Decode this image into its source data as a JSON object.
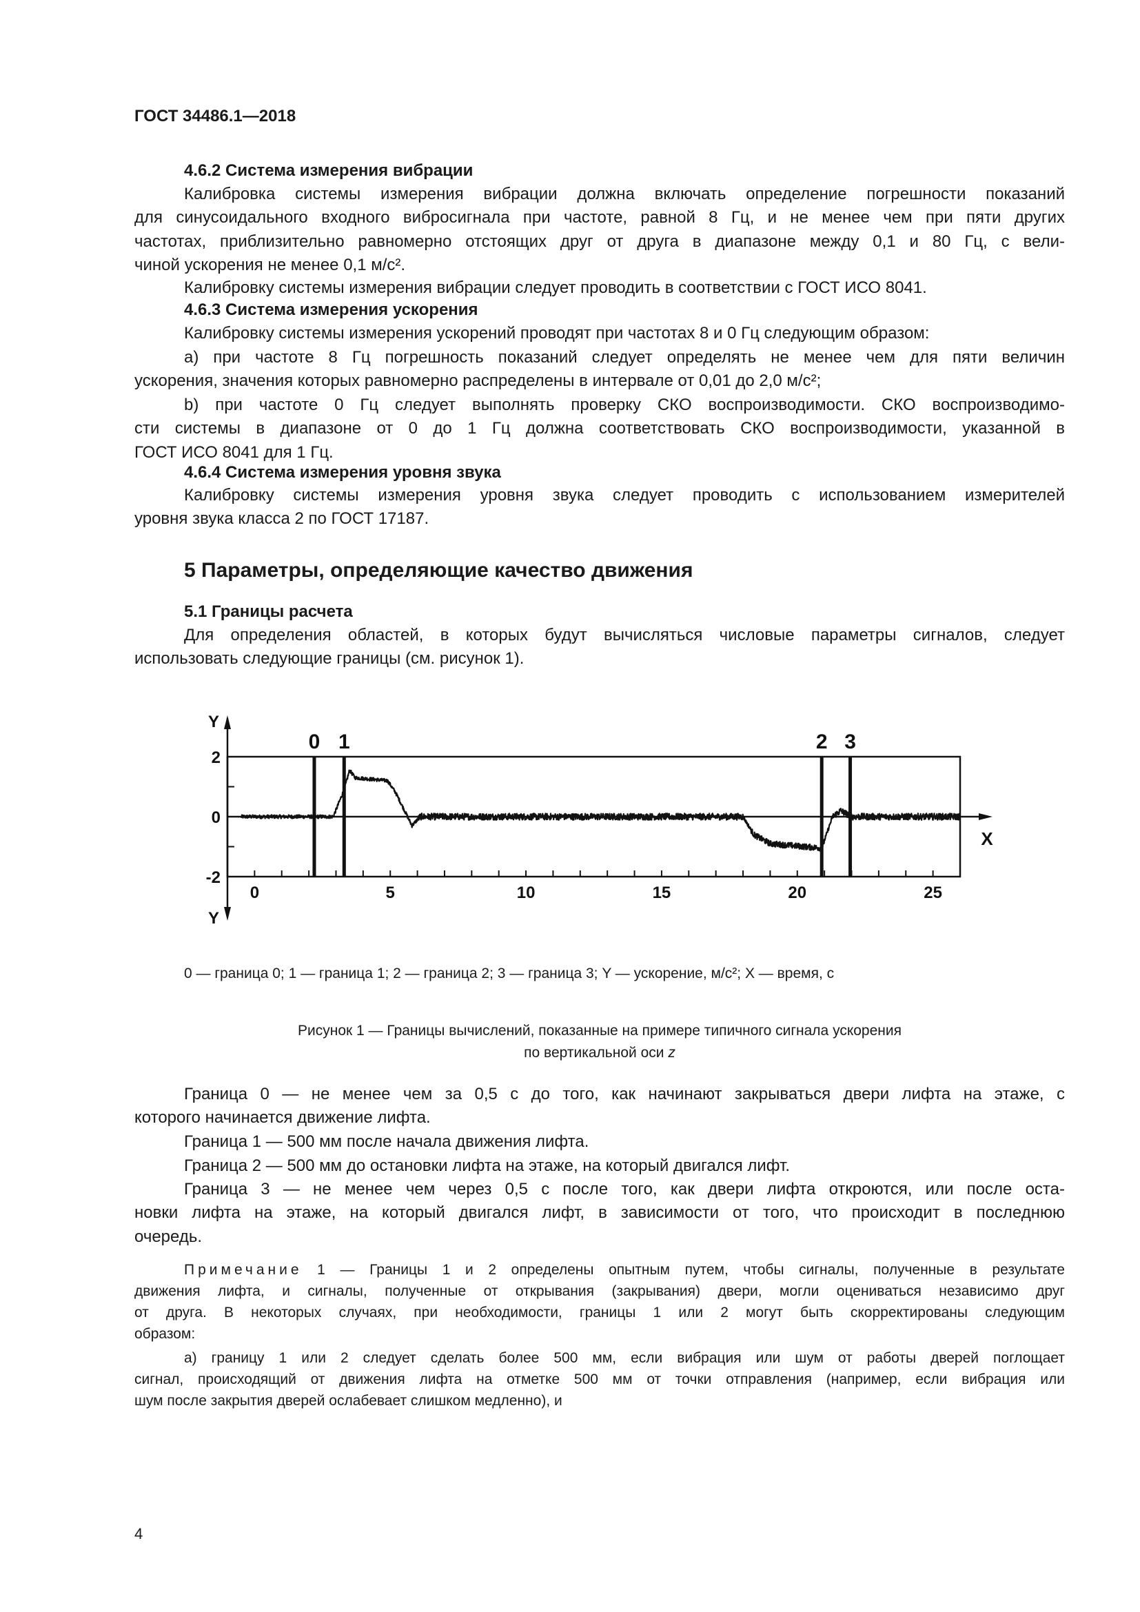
{
  "header": {
    "doc_id": "ГОСТ 34486.1—2018"
  },
  "content": [
    {
      "type": "h3",
      "lines": [
        "4.6.2 Система измерения вибрации"
      ]
    },
    {
      "type": "p",
      "lines": [
        "Калибровка системы измерения вибрации должна включать определение погрешности показаний",
        "для синусоидального входного вибросигнала при частоте, равной 8 Гц, и не менее чем при пяти других",
        "частотах, приблизительно равномерно отстоящих друг от друга в диапазоне между 0,1 и 80 Гц, с вели-",
        "чиной ускорения не менее 0,1 м/с²."
      ]
    },
    {
      "type": "p",
      "lines": [
        "Калибровку системы измерения вибрации следует проводить в соответствии с ГОСТ ИСО 8041."
      ]
    },
    {
      "type": "h3",
      "lines": [
        "4.6.3 Система измерения ускорения"
      ]
    },
    {
      "type": "p",
      "lines": [
        "Калибровку системы измерения ускорений проводят при частотах 8 и 0 Гц следующим образом:"
      ]
    },
    {
      "type": "p",
      "lines": [
        "a) при частоте 8 Гц погрешность показаний следует определять не менее чем для пяти величин",
        "ускорения, значения которых равномерно распределены в интервале от 0,01 до 2,0 м/с²;"
      ]
    },
    {
      "type": "p",
      "lines": [
        "b) при частоте 0 Гц следует выполнять проверку СКО воспроизводимости. СКО воспроизводимо-",
        "сти системы в диапазоне от 0 до 1 Гц должна соответствовать СКО воспроизводимости, указанной в",
        "ГОСТ ИСО 8041 для 1 Гц."
      ]
    },
    {
      "type": "h3",
      "lines": [
        "4.6.4 Система измерения уровня звука"
      ]
    },
    {
      "type": "p",
      "lines": [
        "Калибровку системы измерения уровня звука следует проводить с использованием измерителей",
        "уровня звука класса 2 по ГОСТ 17187."
      ]
    },
    {
      "type": "h2",
      "lines": [
        "5 Параметры, определяющие качество движения"
      ]
    },
    {
      "type": "h3",
      "lines": [
        "5.1 Границы расчета"
      ]
    },
    {
      "type": "p",
      "lines": [
        "Для определения областей, в которых будут вычисляться числовые параметры сигналов, следует",
        "использовать следующие границы (см. рисунок 1)."
      ]
    },
    {
      "type": "p",
      "lines": [
        "Граница 0 — не менее чем за 0,5 с до того, как начинают закрываться двери лифта на этаже, с",
        "которого начинается движение лифта."
      ]
    },
    {
      "type": "p",
      "lines": [
        "Граница 1 — 500 мм после начала движения лифта."
      ]
    },
    {
      "type": "p",
      "lines": [
        "Граница 2 — 500 мм до остановки лифта на этаже, на который двигался лифт."
      ]
    },
    {
      "type": "p",
      "lines": [
        "Граница 3 — не менее чем через 0,5 с после того, как двери лифта откроются, или после оста-",
        "новки лифта на этаже, на который двигался лифт, в зависимости от того, что происходит в последнюю",
        "очередь."
      ]
    },
    {
      "type": "note",
      "label": "Примечание",
      "lines": [
        " 1 — Границы 1 и 2 определены опытным путем, чтобы сигналы, полученные в результате",
        "движения лифта, и сигналы, полученные от открывания (закрывания) двери, могли оцениваться независимо друг",
        "от друга. В некоторых случаях, при необходимости, границы 1 или 2 могут быть скорректированы следующим",
        "образом:"
      ]
    },
    {
      "type": "small",
      "lines": [
        "a) границу 1 или 2 следует сделать более 500 мм, если вибрация или шум от работы дверей поглощает",
        "сигнал, происходящий от движения лифта на отметке 500 мм от точки отправления (например, если вибрация или",
        "шум после закрытия дверей ослабевает слишком медленно), и"
      ]
    }
  ],
  "figure": {
    "legend": "0 — граница 0; 1 — граница 1; 2 — граница 2; 3 — граница 3; Y — ускорение, м/с²; X — время, с",
    "caption_line1": "Рисунок 1 — Границы вычислений, показанные на примере типичного сигнала ускорения",
    "caption_line2": "по вертикальной оси",
    "caption_axis": "z"
  },
  "chart_data": {
    "type": "line",
    "xlabel": "X",
    "ylabel": "Y",
    "xlim": [
      -1,
      26
    ],
    "ylim": [
      -2,
      2
    ],
    "x_ticks": [
      0,
      5,
      10,
      15,
      20,
      25
    ],
    "y_ticks": [
      2,
      0,
      -2
    ],
    "grid": false,
    "boundaries": [
      {
        "label": "0",
        "x": 2.2
      },
      {
        "label": "1",
        "x": 3.3
      },
      {
        "label": "2",
        "x": 20.9
      },
      {
        "label": "3",
        "x": 21.95
      }
    ],
    "signal_key_points": [
      [
        -0.5,
        0
      ],
      [
        2.9,
        0
      ],
      [
        3.3,
        0.9
      ],
      [
        3.5,
        1.55
      ],
      [
        3.7,
        1.3
      ],
      [
        4.9,
        1.2
      ],
      [
        5.2,
        0.8
      ],
      [
        5.8,
        -0.3
      ],
      [
        6.1,
        0
      ],
      [
        18.0,
        0
      ],
      [
        18.4,
        -0.6
      ],
      [
        19.0,
        -0.9
      ],
      [
        20.9,
        -1.05
      ],
      [
        21.3,
        0
      ],
      [
        21.6,
        0.2
      ],
      [
        22.0,
        0
      ],
      [
        26,
        0
      ]
    ],
    "line_color": "#111111"
  },
  "page_number": "4"
}
